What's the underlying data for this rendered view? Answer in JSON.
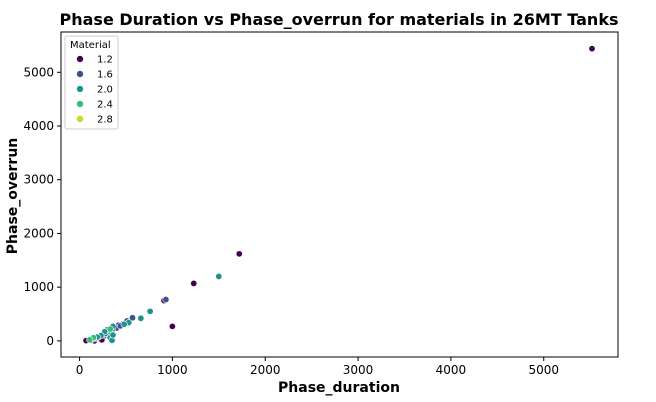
{
  "chart_data": {
    "type": "scatter",
    "title": "Phase Duration vs Phase_overrun for materials in 26MT Tanks",
    "xlabel": "Phase_duration",
    "ylabel": "Phase_overrun",
    "xlim": [
      -200,
      5800
    ],
    "ylim": [
      -300,
      5750
    ],
    "x_ticks": [
      0,
      1000,
      2000,
      3000,
      4000,
      5000
    ],
    "y_ticks": [
      0,
      1000,
      2000,
      3000,
      4000,
      5000
    ],
    "grid": false,
    "legend": {
      "title": "Material",
      "placement": "top-left",
      "entries": [
        {
          "label": "1.2",
          "color": "#440154"
        },
        {
          "label": "1.6",
          "color": "#3b528b"
        },
        {
          "label": "2.0",
          "color": "#21918c"
        },
        {
          "label": "2.4",
          "color": "#3bbb75"
        },
        {
          "label": "2.8",
          "color": "#bddf26"
        }
      ]
    },
    "series": [
      {
        "name": "1.2",
        "color": "#440154",
        "points": [
          [
            5520,
            5440
          ],
          [
            1720,
            1620
          ],
          [
            1230,
            1070
          ],
          [
            1000,
            270
          ],
          [
            910,
            750
          ],
          [
            420,
            290
          ],
          [
            380,
            250
          ],
          [
            300,
            120
          ],
          [
            260,
            90
          ],
          [
            200,
            60
          ],
          [
            170,
            30
          ],
          [
            130,
            10
          ],
          [
            100,
            15
          ],
          [
            70,
            5
          ],
          [
            220,
            40
          ],
          [
            340,
            200
          ],
          [
            160,
            0
          ],
          [
            240,
            20
          ]
        ]
      },
      {
        "name": "1.6",
        "color": "#3b528b",
        "points": [
          [
            930,
            770
          ],
          [
            570,
            430
          ],
          [
            510,
            370
          ],
          [
            470,
            320
          ],
          [
            400,
            240
          ],
          [
            350,
            210
          ],
          [
            310,
            180
          ],
          [
            250,
            110
          ],
          [
            210,
            80
          ],
          [
            180,
            50
          ],
          [
            120,
            10
          ],
          [
            280,
            140
          ],
          [
            440,
            280
          ]
        ]
      },
      {
        "name": "2.0",
        "color": "#21918c",
        "points": [
          [
            1500,
            1200
          ],
          [
            760,
            550
          ],
          [
            660,
            420
          ],
          [
            530,
            340
          ],
          [
            480,
            310
          ],
          [
            360,
            270
          ],
          [
            340,
            130
          ],
          [
            330,
            60
          ],
          [
            350,
            10
          ],
          [
            300,
            210
          ],
          [
            270,
            170
          ],
          [
            230,
            100
          ],
          [
            190,
            70
          ],
          [
            150,
            40
          ],
          [
            360,
            110
          ]
        ]
      },
      {
        "name": "2.4",
        "color": "#3bbb75",
        "points": [
          [
            330,
            220
          ],
          [
            150,
            60
          ],
          [
            110,
            20
          ]
        ]
      },
      {
        "name": "2.8",
        "color": "#bddf26",
        "points": []
      }
    ]
  }
}
